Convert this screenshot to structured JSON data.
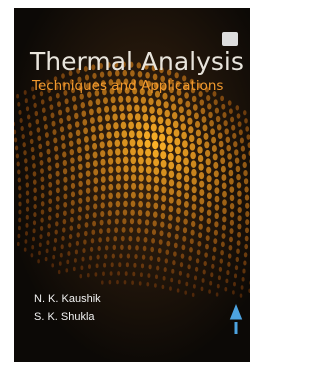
{
  "cover": {
    "title": "Thermal Analysis",
    "subtitle": "Techniques and Applications",
    "authors": [
      "N. K. Kaushik",
      "S. K. Shukla"
    ]
  }
}
